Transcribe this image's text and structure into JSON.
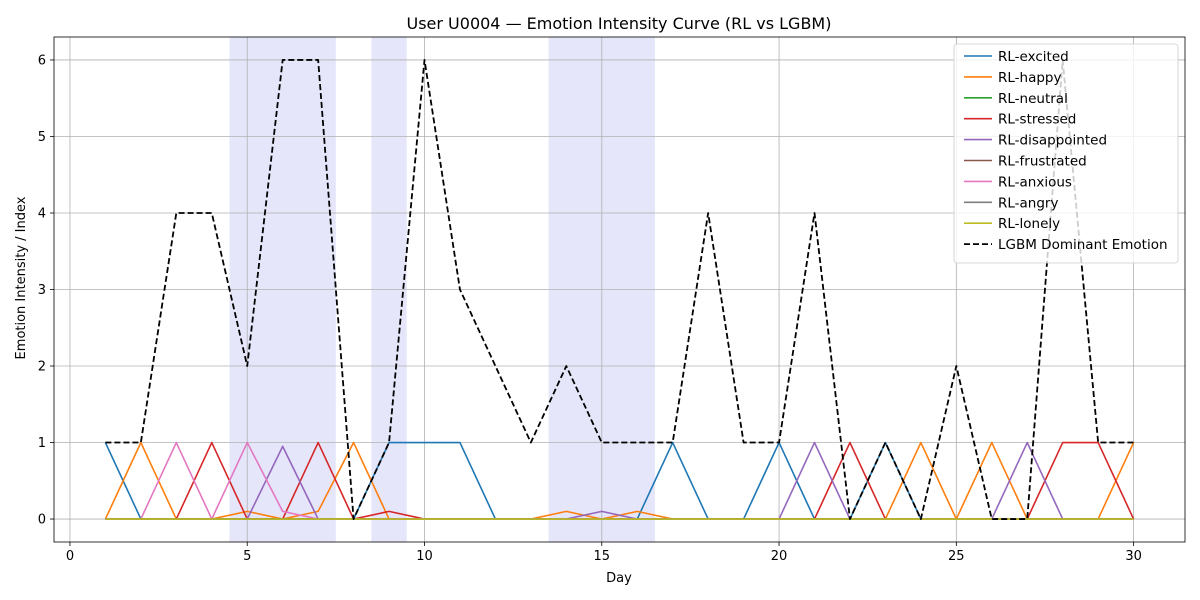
{
  "chart_data": {
    "type": "line",
    "title": "User U0004 — Emotion Intensity Curve (RL vs LGBM)",
    "xlabel": "Day",
    "ylabel": "Emotion Intensity / Index",
    "xlim": [
      -0.45,
      31.45
    ],
    "ylim": [
      -0.3,
      6.3
    ],
    "xticks": [
      0,
      5,
      10,
      15,
      20,
      25,
      30
    ],
    "yticks": [
      0,
      1,
      2,
      3,
      4,
      5,
      6
    ],
    "grid": true,
    "legend_position": "top-right",
    "x": [
      1,
      2,
      3,
      4,
      5,
      6,
      7,
      8,
      9,
      10,
      11,
      12,
      13,
      14,
      15,
      16,
      17,
      18,
      19,
      20,
      21,
      22,
      23,
      24,
      25,
      26,
      27,
      28,
      29,
      30
    ],
    "shaded_day_ranges": [
      [
        4.5,
        7.5
      ],
      [
        8.5,
        9.5
      ],
      [
        13.5,
        16.5
      ]
    ],
    "shade_color": "#e6e6fb",
    "series": [
      {
        "name": "RL-excited",
        "color": "#1f77b4",
        "dash": "solid",
        "values": [
          1,
          0,
          0,
          0,
          0,
          0,
          0,
          0,
          1,
          1,
          1,
          0,
          0,
          0,
          0,
          0,
          1,
          0,
          0,
          1,
          0,
          0,
          1,
          0,
          0,
          0,
          0,
          0,
          0,
          0
        ]
      },
      {
        "name": "RL-happy",
        "color": "#ff7f0e",
        "dash": "solid",
        "values": [
          0,
          1,
          0,
          0,
          0.1,
          0,
          0.1,
          1,
          0,
          0,
          0,
          0,
          0,
          0.1,
          0,
          0.1,
          0,
          0,
          0,
          0,
          0,
          0,
          0,
          1,
          0,
          1,
          0,
          0,
          0,
          1
        ]
      },
      {
        "name": "RL-neutral",
        "color": "#2ca02c",
        "dash": "solid",
        "values": [
          0,
          0,
          0,
          0,
          0,
          0,
          0,
          0,
          0,
          0,
          0,
          0,
          0,
          0,
          0,
          0,
          0,
          0,
          0,
          0,
          0,
          0,
          0,
          0,
          0,
          0,
          0,
          0,
          0,
          0
        ]
      },
      {
        "name": "RL-stressed",
        "color": "#d62728",
        "dash": "solid",
        "values": [
          0,
          0,
          0,
          1,
          0,
          0,
          1,
          0,
          0.1,
          0,
          0,
          0,
          0,
          0,
          0,
          0,
          0,
          0,
          0,
          0,
          0,
          1,
          0,
          0,
          0,
          0,
          0,
          1,
          1,
          0
        ]
      },
      {
        "name": "RL-disappointed",
        "color": "#9467bd",
        "dash": "solid",
        "values": [
          0,
          0,
          0,
          0,
          0,
          0.95,
          0,
          0,
          0,
          0,
          0,
          0,
          0,
          0,
          0.1,
          0,
          0,
          0,
          0,
          0,
          1,
          0,
          0,
          0,
          0,
          0,
          1,
          0,
          0,
          0
        ]
      },
      {
        "name": "RL-frustrated",
        "color": "#8c564b",
        "dash": "solid",
        "values": [
          0,
          0,
          0,
          0,
          0,
          0,
          0,
          0,
          0,
          0,
          0,
          0,
          0,
          0,
          0,
          0,
          0,
          0,
          0,
          0,
          0,
          0,
          0,
          0,
          0,
          0,
          0,
          0,
          0,
          0
        ]
      },
      {
        "name": "RL-anxious",
        "color": "#e377c2",
        "dash": "solid",
        "values": [
          0,
          0,
          1,
          0,
          1,
          0.1,
          0,
          0,
          0,
          0,
          0,
          0,
          0,
          0,
          0,
          0,
          0,
          0,
          0,
          0,
          0,
          0,
          0,
          0,
          0,
          0,
          0,
          0,
          0,
          0
        ]
      },
      {
        "name": "RL-angry",
        "color": "#7f7f7f",
        "dash": "solid",
        "values": [
          0,
          0,
          0,
          0,
          0,
          0,
          0,
          0,
          0,
          0,
          0,
          0,
          0,
          0,
          0,
          0,
          0,
          0,
          0,
          0,
          0,
          0,
          0,
          0,
          0,
          0,
          0,
          0,
          0,
          0
        ]
      },
      {
        "name": "RL-lonely",
        "color": "#bcbd22",
        "dash": "solid",
        "values": [
          0,
          0,
          0,
          0,
          0,
          0,
          0,
          0,
          0,
          0,
          0,
          0,
          0,
          0,
          0,
          0,
          0,
          0,
          0,
          0,
          0,
          0,
          0,
          0,
          0,
          0,
          0,
          0,
          0,
          0
        ]
      },
      {
        "name": "LGBM Dominant Emotion",
        "color": "#000000",
        "dash": "dashed",
        "values": [
          1,
          1,
          4,
          4,
          2,
          6,
          6,
          0,
          1,
          6,
          3,
          2,
          1,
          2,
          1,
          1,
          1,
          4,
          1,
          1,
          4,
          0,
          1,
          0,
          2,
          0,
          0,
          6,
          1,
          1
        ]
      }
    ]
  }
}
